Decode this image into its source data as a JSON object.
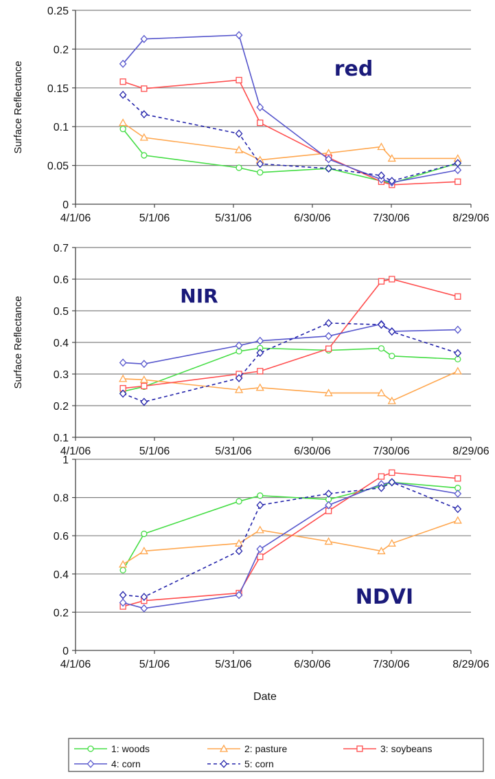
{
  "chart_data": [
    {
      "type": "line",
      "panel_label": "red",
      "ylabel": "Surface Reflectance",
      "xlabel": "",
      "ylim": [
        0,
        0.25
      ],
      "y_ticks": [
        "0",
        "0.05",
        "0.1",
        "0.15",
        "0.2",
        "0.25"
      ],
      "x_ticks": [
        "4/1/06",
        "5/1/06",
        "5/31/06",
        "6/30/06",
        "7/30/06",
        "8/29/06"
      ],
      "grid": true,
      "series": [
        {
          "name": "1: woods",
          "x": [
            "4/19/06",
            "4/27/06",
            "6/2/06",
            "6/10/06",
            "7/6/06",
            "7/26/06",
            "7/30/06",
            "8/24/06"
          ],
          "values": [
            0.097,
            0.063,
            0.047,
            0.041,
            0.046,
            0.03,
            0.027,
            0.053
          ]
        },
        {
          "name": "2: pasture",
          "x": [
            "4/19/06",
            "4/27/06",
            "6/2/06",
            "6/10/06",
            "7/6/06",
            "7/26/06",
            "7/30/06",
            "8/24/06"
          ],
          "values": [
            0.105,
            0.086,
            0.07,
            0.057,
            0.066,
            0.074,
            0.059,
            0.059
          ]
        },
        {
          "name": "3: soybeans",
          "x": [
            "4/19/06",
            "4/27/06",
            "6/2/06",
            "6/10/06",
            "7/6/06",
            "7/26/06",
            "7/30/06",
            "8/24/06"
          ],
          "values": [
            0.158,
            0.149,
            0.16,
            0.105,
            0.06,
            0.029,
            0.025,
            0.029
          ]
        },
        {
          "name": "4: corn",
          "x": [
            "4/19/06",
            "4/27/06",
            "6/2/06",
            "6/10/06",
            "7/6/06",
            "7/26/06",
            "7/30/06",
            "8/24/06"
          ],
          "values": [
            0.181,
            0.213,
            0.218,
            0.125,
            0.058,
            0.032,
            0.028,
            0.044
          ]
        },
        {
          "name": "5: corn",
          "x": [
            "4/19/06",
            "4/27/06",
            "6/2/06",
            "6/10/06",
            "7/6/06",
            "7/26/06",
            "7/30/06",
            "8/24/06"
          ],
          "values": [
            0.141,
            0.116,
            0.091,
            0.052,
            0.046,
            0.037,
            0.03,
            0.053
          ]
        }
      ]
    },
    {
      "type": "line",
      "panel_label": "NIR",
      "ylabel": "Surface Reflectance",
      "xlabel": "",
      "ylim": [
        0.1,
        0.7
      ],
      "y_ticks": [
        "0.1",
        "0.2",
        "0.3",
        "0.4",
        "0.5",
        "0.6",
        "0.7"
      ],
      "x_ticks": [
        "4/1/06",
        "5/1/06",
        "5/31/06",
        "6/30/06",
        "7/30/06",
        "8/29/06"
      ],
      "grid": true,
      "series": [
        {
          "name": "1: woods",
          "x": [
            "4/19/06",
            "4/27/06",
            "6/2/06",
            "6/10/06",
            "7/6/06",
            "7/26/06",
            "7/30/06",
            "8/24/06"
          ],
          "values": [
            0.245,
            0.26,
            0.372,
            0.382,
            0.375,
            0.381,
            0.357,
            0.347
          ]
        },
        {
          "name": "2: pasture",
          "x": [
            "4/19/06",
            "4/27/06",
            "6/2/06",
            "6/10/06",
            "7/6/06",
            "7/26/06",
            "7/30/06",
            "8/24/06"
          ],
          "values": [
            0.285,
            0.282,
            0.25,
            0.257,
            0.24,
            0.24,
            0.215,
            0.309
          ]
        },
        {
          "name": "3: soybeans",
          "x": [
            "4/19/06",
            "4/27/06",
            "6/2/06",
            "6/10/06",
            "7/6/06",
            "7/26/06",
            "7/30/06",
            "8/24/06"
          ],
          "values": [
            0.255,
            0.262,
            0.3,
            0.309,
            0.38,
            0.593,
            0.6,
            0.545
          ]
        },
        {
          "name": "4: corn",
          "x": [
            "4/19/06",
            "4/27/06",
            "6/2/06",
            "6/10/06",
            "7/6/06",
            "7/26/06",
            "7/30/06",
            "8/24/06"
          ],
          "values": [
            0.336,
            0.332,
            0.39,
            0.405,
            0.42,
            0.458,
            0.435,
            0.44
          ]
        },
        {
          "name": "5: corn",
          "x": [
            "4/19/06",
            "4/27/06",
            "6/2/06",
            "6/10/06",
            "7/6/06",
            "7/26/06",
            "7/30/06",
            "8/24/06"
          ],
          "values": [
            0.238,
            0.212,
            0.287,
            0.367,
            0.461,
            0.456,
            0.434,
            0.366
          ]
        }
      ]
    },
    {
      "type": "line",
      "panel_label": "NDVI",
      "ylabel": "",
      "xlabel": "Date",
      "ylim": [
        0,
        1
      ],
      "y_ticks": [
        "0",
        "0.2",
        "0.4",
        "0.6",
        "0.8",
        "1"
      ],
      "x_ticks": [
        "4/1/06",
        "5/1/06",
        "5/31/06",
        "6/30/06",
        "7/30/06",
        "8/29/06"
      ],
      "grid": true,
      "series": [
        {
          "name": "1: woods",
          "x": [
            "4/19/06",
            "4/27/06",
            "6/2/06",
            "6/10/06",
            "7/6/06",
            "7/26/06",
            "7/30/06",
            "8/24/06"
          ],
          "values": [
            0.42,
            0.61,
            0.78,
            0.81,
            0.79,
            0.86,
            0.88,
            0.85
          ]
        },
        {
          "name": "2: pasture",
          "x": [
            "4/19/06",
            "4/27/06",
            "6/2/06",
            "6/10/06",
            "7/6/06",
            "7/26/06",
            "7/30/06",
            "8/24/06"
          ],
          "values": [
            0.45,
            0.52,
            0.56,
            0.63,
            0.57,
            0.52,
            0.56,
            0.68
          ]
        },
        {
          "name": "3: soybeans",
          "x": [
            "4/19/06",
            "4/27/06",
            "6/2/06",
            "6/10/06",
            "7/6/06",
            "7/26/06",
            "7/30/06",
            "8/24/06"
          ],
          "values": [
            0.23,
            0.26,
            0.3,
            0.49,
            0.73,
            0.91,
            0.93,
            0.9
          ]
        },
        {
          "name": "4: corn",
          "x": [
            "4/19/06",
            "4/27/06",
            "6/2/06",
            "6/10/06",
            "7/6/06",
            "7/26/06",
            "7/30/06",
            "8/24/06"
          ],
          "values": [
            0.25,
            0.22,
            0.29,
            0.53,
            0.76,
            0.87,
            0.88,
            0.82
          ]
        },
        {
          "name": "5: corn",
          "x": [
            "4/19/06",
            "4/27/06",
            "6/2/06",
            "6/10/06",
            "7/6/06",
            "7/26/06",
            "7/30/06",
            "8/24/06"
          ],
          "values": [
            0.29,
            0.28,
            0.52,
            0.76,
            0.82,
            0.85,
            0.88,
            0.74
          ]
        }
      ]
    }
  ],
  "legend": {
    "placement": "bottom",
    "entries": [
      {
        "name": "1: woods",
        "color": "#44dd44",
        "marker": "circle",
        "dash": false
      },
      {
        "name": "2: pasture",
        "color": "#ffa64d",
        "marker": "triangle",
        "dash": false
      },
      {
        "name": "3: soybeans",
        "color": "#ff4d4d",
        "marker": "square",
        "dash": false
      },
      {
        "name": "4: corn",
        "color": "#5555cc",
        "marker": "diamond",
        "dash": false
      },
      {
        "name": "5: corn",
        "color": "#2222aa",
        "marker": "diamond",
        "dash": true
      }
    ]
  },
  "colors": {
    "panel_label": "#1a1a7a",
    "grid": "#808080",
    "axis": "#444444"
  }
}
